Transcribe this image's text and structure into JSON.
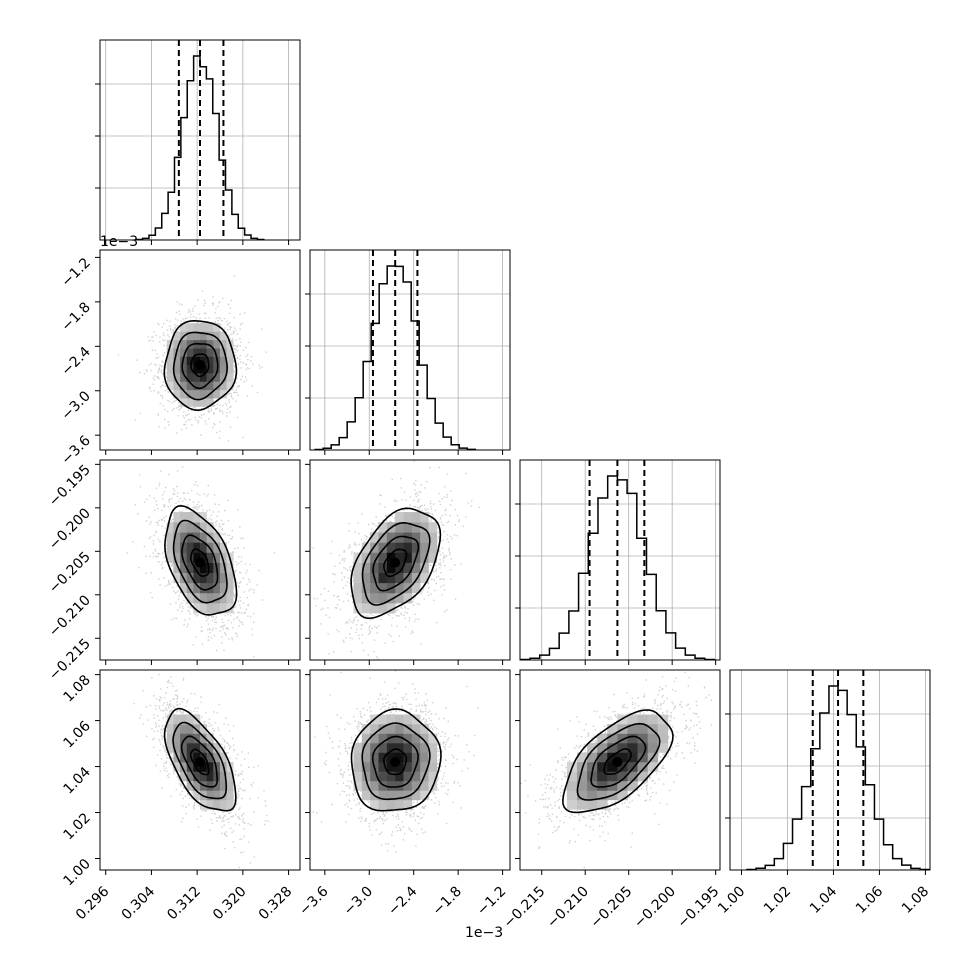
{
  "chart_data": {
    "type": "corner",
    "parameters": [
      {
        "range": [
          0.295,
          0.33
        ],
        "ticks": [
          "0.296",
          "0.304",
          "0.312",
          "0.320",
          "0.328"
        ],
        "tick_values": [
          0.296,
          0.304,
          0.312,
          0.32,
          0.328
        ],
        "quantiles": [
          0.3088,
          0.3125,
          0.3166
        ],
        "mean": 0.3125,
        "sd": 0.0031
      },
      {
        "range": [
          -3.8,
          -1.1
        ],
        "ticks": [
          "−3.6",
          "−3.0",
          "−2.4",
          "−1.8",
          "−1.2"
        ],
        "tick_values": [
          -3.6,
          -3.0,
          -2.4,
          -1.8,
          -1.2
        ],
        "offset_label": "1e−3",
        "quantiles": [
          -2.95,
          -2.65,
          -2.35
        ],
        "mean": -2.65,
        "sd": 0.3
      },
      {
        "range": [
          -0.2175,
          -0.1945
        ],
        "ticks": [
          "−0.215",
          "−0.210",
          "−0.205",
          "−0.200",
          "−0.195"
        ],
        "tick_values": [
          -0.215,
          -0.21,
          -0.205,
          -0.2,
          -0.195
        ],
        "quantiles": [
          -0.2095,
          -0.2063,
          -0.2032
        ],
        "mean": -0.2063,
        "sd": 0.0031
      },
      {
        "range": [
          0.995,
          1.082
        ],
        "ticks": [
          "1.00",
          "1.02",
          "1.04",
          "1.06",
          "1.08"
        ],
        "tick_values": [
          1.0,
          1.02,
          1.04,
          1.06,
          1.08
        ],
        "quantiles": [
          1.031,
          1.042,
          1.053
        ],
        "mean": 1.042,
        "sd": 0.011
      }
    ],
    "correlations": {
      "1-0": 0.02,
      "2-0": -0.45,
      "2-1": 0.45,
      "3-0": -0.6,
      "3-1": 0.05,
      "3-2": 0.6
    },
    "histogram_bins": 20,
    "quantile_levels": [
      0.16,
      0.5,
      0.84
    ],
    "colors": {
      "line": "#000000",
      "grid": "#b0b0b0",
      "scatter": "#9a9a9a"
    },
    "grid": true
  },
  "panels": [
    {
      "type": "hist",
      "row": 0,
      "col": 0
    },
    {
      "type": "hist2d",
      "row": 1,
      "col": 0
    },
    {
      "type": "hist",
      "row": 1,
      "col": 1
    },
    {
      "type": "hist2d",
      "row": 2,
      "col": 0
    },
    {
      "type": "hist2d",
      "row": 2,
      "col": 1
    },
    {
      "type": "hist",
      "row": 2,
      "col": 2
    },
    {
      "type": "hist2d",
      "row": 3,
      "col": 0
    },
    {
      "type": "hist2d",
      "row": 3,
      "col": 1
    },
    {
      "type": "hist2d",
      "row": 3,
      "col": 2
    },
    {
      "type": "hist",
      "row": 3,
      "col": 3
    }
  ]
}
